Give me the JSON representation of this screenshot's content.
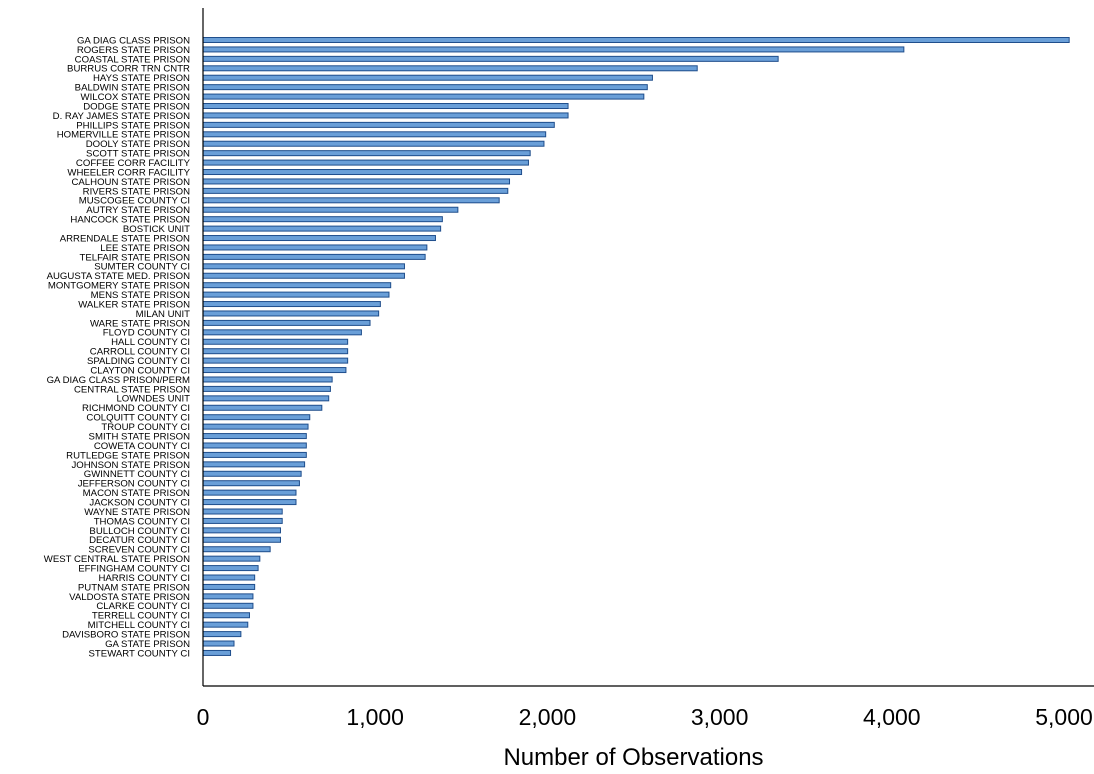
{
  "chart_data": {
    "type": "bar",
    "orientation": "horizontal",
    "title": "",
    "xlabel": "Number of Observations",
    "ylabel": "",
    "xlim": [
      0,
      5000
    ],
    "xticks": [
      0,
      1000,
      2000,
      3000,
      4000,
      5000
    ],
    "xtick_labels": [
      "0",
      "1,000",
      "2,000",
      "3,000",
      "4,000",
      "5,000"
    ],
    "grid": false,
    "legend": "none",
    "colors": {
      "bar_fill": "#6a9fd8",
      "bar_stroke": "#1f4e8c",
      "axis": "#000000"
    },
    "categories": [
      "GA DIAG CLASS PRISON",
      "ROGERS STATE PRISON",
      "COASTAL STATE PRISON",
      "BURRUS CORR TRN CNTR",
      "HAYS STATE PRISON",
      "BALDWIN STATE PRISON",
      "WILCOX STATE PRISON",
      "DODGE STATE PRISON",
      "D. RAY JAMES STATE PRISON",
      "PHILLIPS STATE PRISON",
      "HOMERVILLE STATE PRISON",
      "DOOLY STATE PRISON",
      "SCOTT STATE PRISON",
      "COFFEE CORR FACILITY",
      "WHEELER CORR FACILITY",
      "CALHOUN STATE PRISON",
      "RIVERS STATE PRISON",
      "MUSCOGEE COUNTY CI",
      "AUTRY STATE PRISON",
      "HANCOCK STATE PRISON",
      "BOSTICK UNIT",
      "ARRENDALE STATE PRISON",
      "LEE STATE PRISON",
      "TELFAIR STATE PRISON",
      "SUMTER COUNTY CI",
      "AUGUSTA STATE MED. PRISON",
      "MONTGOMERY STATE PRISON",
      "MENS STATE PRISON",
      "WALKER STATE PRISON",
      "MILAN UNIT",
      "WARE STATE PRISON",
      "FLOYD COUNTY CI",
      "HALL COUNTY CI",
      "CARROLL COUNTY CI",
      "SPALDING COUNTY CI",
      "CLAYTON COUNTY CI",
      "GA DIAG CLASS PRISON/PERM",
      "CENTRAL STATE PRISON",
      "LOWNDES UNIT",
      "RICHMOND COUNTY CI",
      "COLQUITT COUNTY CI",
      "TROUP COUNTY CI",
      "SMITH STATE PRISON",
      "COWETA COUNTY CI",
      "RUTLEDGE STATE PRISON",
      "JOHNSON STATE PRISON",
      "GWINNETT COUNTY CI",
      "JEFFERSON COUNTY CI",
      "MACON STATE PRISON",
      "JACKSON COUNTY CI",
      "WAYNE STATE PRISON",
      "THOMAS COUNTY CI",
      "BULLOCH COUNTY CI",
      "DECATUR COUNTY CI",
      "SCREVEN COUNTY CI",
      "WEST CENTRAL STATE PRISON",
      "EFFINGHAM COUNTY CI",
      "HARRIS COUNTY CI",
      "PUTNAM STATE PRISON",
      "VALDOSTA STATE PRISON",
      "CLARKE COUNTY CI",
      "TERRELL COUNTY CI",
      "MITCHELL COUNTY CI",
      "DAVISBORO STATE PRISON",
      "GA STATE PRISON",
      "STEWART COUNTY CI"
    ],
    "values": [
      5030,
      4070,
      3340,
      2870,
      2610,
      2580,
      2560,
      2120,
      2120,
      2040,
      1990,
      1980,
      1900,
      1890,
      1850,
      1780,
      1770,
      1720,
      1480,
      1390,
      1380,
      1350,
      1300,
      1290,
      1170,
      1170,
      1090,
      1080,
      1030,
      1020,
      970,
      920,
      840,
      840,
      840,
      830,
      750,
      740,
      730,
      690,
      620,
      610,
      600,
      600,
      600,
      590,
      570,
      560,
      540,
      540,
      460,
      460,
      450,
      450,
      390,
      330,
      320,
      300,
      300,
      290,
      290,
      270,
      260,
      220,
      180,
      160
    ]
  }
}
